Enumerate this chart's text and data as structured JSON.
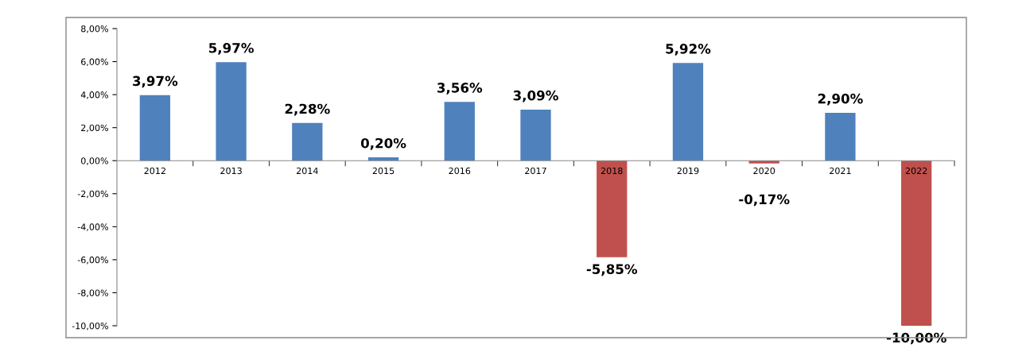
{
  "chart_data": {
    "type": "bar",
    "categories": [
      "2012",
      "2013",
      "2014",
      "2015",
      "2016",
      "2017",
      "2018",
      "2019",
      "2020",
      "2021",
      "2022"
    ],
    "values": [
      3.97,
      5.97,
      2.28,
      0.2,
      3.56,
      3.09,
      -5.85,
      5.92,
      -0.17,
      2.9,
      -10.0
    ],
    "colors": [
      "#4f81bd",
      "#4f81bd",
      "#4f81bd",
      "#4f81bd",
      "#4f81bd",
      "#4f81bd",
      "#c0504d",
      "#4f81bd",
      "#c0504d",
      "#4f81bd",
      "#c0504d"
    ],
    "value_labels": [
      "3,97%",
      "5,97%",
      "2,28%",
      "0,20%",
      "3,56%",
      "3,09%",
      "-5,85%",
      "5,92%",
      "-0,17%",
      "2,90%",
      "-10,00%"
    ],
    "ylim": [
      -10,
      8
    ],
    "yticks": [
      {
        "value": -10,
        "label": "-10,00%"
      },
      {
        "value": -8,
        "label": "-8,00%"
      },
      {
        "value": -6,
        "label": "-6,00%"
      },
      {
        "value": -4,
        "label": "-4,00%"
      },
      {
        "value": -2,
        "label": "-2,00%"
      },
      {
        "value": 0,
        "label": "0,00%"
      },
      {
        "value": 2,
        "label": "2,00%"
      },
      {
        "value": 4,
        "label": "4,00%"
      },
      {
        "value": 6,
        "label": "6,00%"
      },
      {
        "value": 8,
        "label": "8,00%"
      }
    ],
    "grid": false,
    "legend": false
  }
}
